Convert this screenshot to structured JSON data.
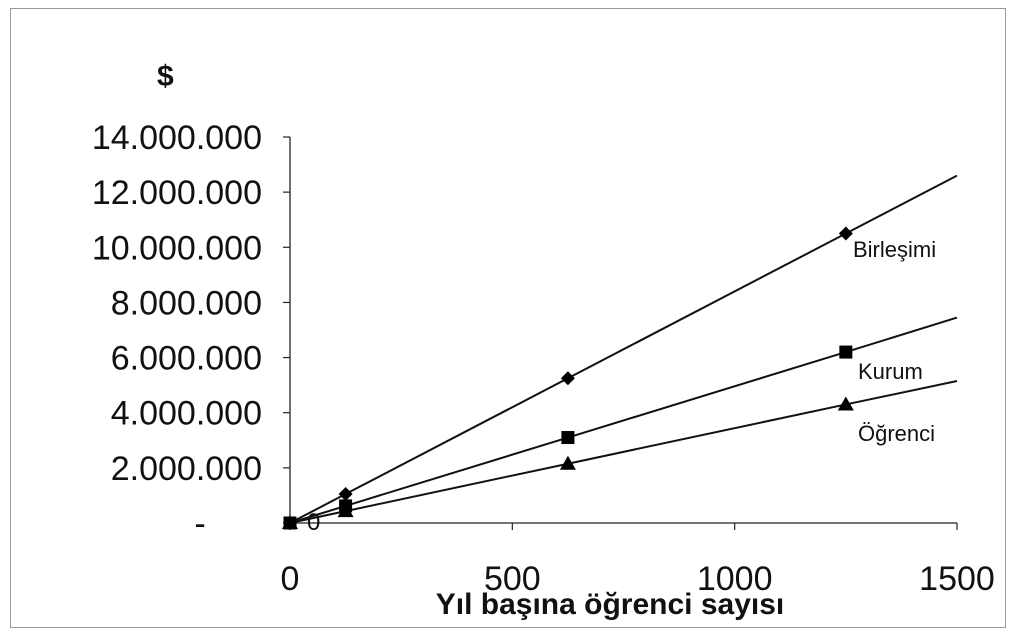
{
  "chart_data": {
    "type": "line",
    "title": "",
    "unit_label": "$",
    "xlabel": "Yıl başına öğrenci sayısı",
    "ylabel": "",
    "xlim": [
      0,
      1500
    ],
    "ylim": [
      0,
      14000000
    ],
    "x_ticks": [
      0,
      500,
      1000,
      1500
    ],
    "x_tick_labels": [
      "0",
      "500",
      "1000",
      "1500"
    ],
    "y_ticks": [
      0,
      2000000,
      4000000,
      6000000,
      8000000,
      10000000,
      12000000,
      14000000
    ],
    "y_tick_labels": [
      "-",
      "2.000.000",
      "4.000.000",
      "6.000.000",
      "8.000.000",
      "10.000.000",
      "12.000.000",
      "14.000.000"
    ],
    "zero_annotation": "0",
    "grid": false,
    "series": [
      {
        "name": "Birleşimi",
        "marker": "diamond",
        "points": [
          [
            0,
            0
          ],
          [
            125,
            1050000
          ],
          [
            625,
            5250000
          ],
          [
            1250,
            10500000
          ]
        ],
        "line_end": [
          1500,
          12600000
        ]
      },
      {
        "name": "Kurum",
        "marker": "square",
        "points": [
          [
            0,
            0
          ],
          [
            125,
            620000
          ],
          [
            625,
            3100000
          ],
          [
            1250,
            6200000
          ]
        ],
        "line_end": [
          1500,
          7450000
        ]
      },
      {
        "name": "Öğrenci",
        "marker": "triangle",
        "points": [
          [
            0,
            0
          ],
          [
            125,
            430000
          ],
          [
            625,
            2150000
          ],
          [
            1250,
            4300000
          ]
        ],
        "line_end": [
          1500,
          5150000
        ]
      }
    ]
  }
}
